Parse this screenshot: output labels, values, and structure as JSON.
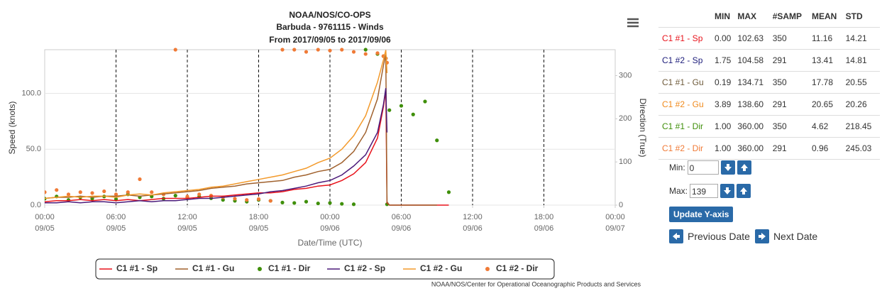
{
  "chart_data": {
    "type": "line",
    "title": "NOAA/NOS/CO-OPS",
    "subtitle": "Barbuda - 9761115 - Winds",
    "period": "From 2017/09/05 to 2017/09/06",
    "y_label": "Speed (knots)",
    "y2_label": "Direction (True)",
    "x_label": "Date/Time (UTC)",
    "credit": "NOAA/NOS/Center for Operational Oceanographic Products and Services",
    "legend": "bottom",
    "grid": true,
    "x_grid": "dashed",
    "xlim": [
      "09/05 00:00",
      "09/07 00:00"
    ],
    "xticks": [
      {
        "time": "00:00",
        "date": "09/05"
      },
      {
        "time": "06:00",
        "date": "09/05"
      },
      {
        "time": "12:00",
        "date": "09/05"
      },
      {
        "time": "18:00",
        "date": "09/05"
      },
      {
        "time": "00:00",
        "date": "09/06"
      },
      {
        "time": "06:00",
        "date": "09/06"
      },
      {
        "time": "12:00",
        "date": "09/06"
      },
      {
        "time": "18:00",
        "date": "09/06"
      },
      {
        "time": "00:00",
        "date": "09/07"
      }
    ],
    "ylim": [
      0,
      139
    ],
    "yticks": [
      {
        "value": 0,
        "label": "0.0"
      },
      {
        "value": 50,
        "label": "50.0"
      },
      {
        "value": 100,
        "label": "100.0"
      }
    ],
    "y2lim": [
      0,
      360
    ],
    "y2ticks": [
      0,
      100,
      200,
      300
    ],
    "x": [
      "09/05 00:00",
      "09/05 01:00",
      "09/05 02:00",
      "09/05 03:00",
      "09/05 04:00",
      "09/05 05:00",
      "09/05 06:00",
      "09/05 07:00",
      "09/05 08:00",
      "09/05 09:00",
      "09/05 10:00",
      "09/05 11:00",
      "09/05 12:00",
      "09/05 13:00",
      "09/05 14:00",
      "09/05 15:00",
      "09/05 16:00",
      "09/05 17:00",
      "09/05 18:00",
      "09/05 19:00",
      "09/05 20:00",
      "09/05 21:00",
      "09/05 22:00",
      "09/05 23:00",
      "09/06 00:00",
      "09/06 01:00",
      "09/06 02:00",
      "09/06 03:00",
      "09/06 04:00",
      "09/06 04:30",
      "09/06 04:42",
      "09/06 04:48",
      "09/06 05:00",
      "09/06 06:00",
      "09/06 07:00",
      "09/06 08:00",
      "09/06 09:00",
      "09/06 10:00"
    ],
    "series": [
      {
        "name": "C1 #1 - Sp",
        "color": "#e8131b",
        "style": "line",
        "values": [
          3,
          4,
          4,
          5,
          4,
          5,
          4,
          5,
          4,
          5,
          6,
          6,
          6,
          7,
          8,
          8,
          9,
          10,
          11,
          11,
          12,
          14,
          15,
          17,
          18,
          22,
          28,
          38,
          60,
          88,
          102.63,
          2,
          0,
          0,
          0,
          0,
          0,
          0
        ]
      },
      {
        "name": "C1 #1 - Gu",
        "color": "#a0612d",
        "style": "line",
        "values": [
          6,
          7,
          7,
          8,
          7,
          8,
          8,
          9,
          8,
          9,
          10,
          11,
          12,
          13,
          15,
          16,
          17,
          19,
          20,
          21,
          22,
          25,
          27,
          30,
          32,
          38,
          48,
          65,
          95,
          125,
          134.71,
          3,
          0,
          0,
          0,
          0,
          0,
          null
        ]
      },
      {
        "name": "C1 #1 - Dir",
        "color": "#3f8f0a",
        "style": "dots",
        "axis": "y2",
        "values": [
          15,
          20,
          12,
          18,
          15,
          20,
          14,
          25,
          18,
          20,
          15,
          22,
          18,
          20,
          16,
          12,
          10,
          8,
          12,
          10,
          6,
          5,
          8,
          4,
          5,
          3,
          2,
          360,
          350,
          345,
          340,
          2,
          220,
          230,
          210,
          240,
          150,
          30
        ]
      },
      {
        "name": "C1 #2 - Sp",
        "color": "#4b1a7a",
        "style": "line",
        "values": [
          2,
          2,
          3,
          2,
          3,
          3,
          2,
          3,
          4,
          3,
          4,
          4,
          5,
          6,
          6,
          7,
          8,
          9,
          10,
          12,
          13,
          15,
          17,
          20,
          22,
          27,
          35,
          45,
          65,
          90,
          104.58,
          65,
          null,
          null,
          null,
          null,
          null,
          null
        ]
      },
      {
        "name": "C1 #2 - Gu",
        "color": "#f39a2b",
        "style": "line",
        "values": [
          6,
          7,
          8,
          7,
          8,
          8,
          7,
          9,
          10,
          9,
          11,
          12,
          13,
          14,
          16,
          17,
          19,
          21,
          23,
          25,
          27,
          30,
          33,
          38,
          42,
          50,
          62,
          80,
          110,
          130,
          138.6,
          118,
          null,
          null,
          null,
          null,
          null,
          null
        ]
      },
      {
        "name": "C1 #2 - Dir",
        "color": "#f07a36",
        "style": "dots",
        "axis": "y2",
        "values": [
          30,
          35,
          25,
          30,
          28,
          32,
          25,
          30,
          60,
          30,
          25,
          360,
          20,
          25,
          22,
          18,
          15,
          12,
          14,
          10,
          360,
          360,
          355,
          360,
          358,
          360,
          355,
          350,
          352,
          345,
          340,
          330,
          null,
          null,
          null,
          null,
          null,
          null
        ]
      }
    ]
  },
  "stats_table": {
    "columns": [
      "MIN",
      "MAX",
      "#SAMP",
      "MEAN",
      "STD"
    ],
    "rows": [
      {
        "name": "C1 #1 - Sp",
        "color": "#e8131b",
        "cells": [
          "0.00",
          "102.63",
          "350",
          "11.16",
          "14.21"
        ]
      },
      {
        "name": "C1 #2 - Sp",
        "color": "#1c1c7a",
        "cells": [
          "1.75",
          "104.58",
          "291",
          "13.41",
          "14.81"
        ]
      },
      {
        "name": "C1 #1 - Gu",
        "color": "#6e5a3a",
        "cells": [
          "0.19",
          "134.71",
          "350",
          "17.78",
          "20.55"
        ]
      },
      {
        "name": "C1 #2 - Gu",
        "color": "#f08a1c",
        "cells": [
          "3.89",
          "138.60",
          "291",
          "20.65",
          "20.26"
        ]
      },
      {
        "name": "C1 #1 - Dir",
        "color": "#3f8f0a",
        "cells": [
          "1.00",
          "360.00",
          "350",
          "4.62",
          "218.45"
        ]
      },
      {
        "name": "C1 #2 - Dir",
        "color": "#f07a36",
        "cells": [
          "1.00",
          "360.00",
          "291",
          "0.96",
          "245.03"
        ]
      }
    ]
  },
  "controls": {
    "min_label": "Min:",
    "min_value": "0",
    "max_label": "Max:",
    "max_value": "139",
    "update_button": "Update Y-axis",
    "previous": "Previous Date",
    "next": "Next Date"
  }
}
